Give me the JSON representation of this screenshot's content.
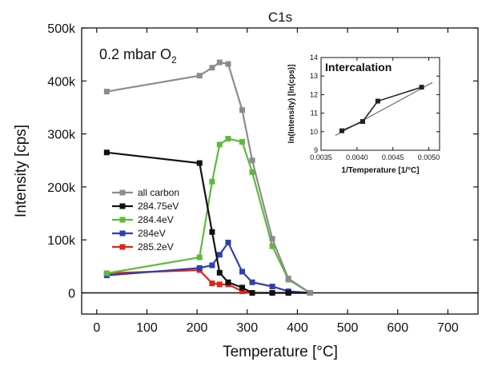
{
  "chart_data": {
    "type": "line",
    "title": "C1s",
    "xlabel": "Temperature [°C]",
    "ylabel": "Intensity [cps]",
    "annotation": "0.2 mbar O",
    "annotation_sub": "2",
    "xlim": [
      -30,
      760
    ],
    "ylim": [
      -40000,
      500000
    ],
    "xticks": [
      0,
      100,
      200,
      300,
      400,
      500,
      600,
      700
    ],
    "xtick_labels": [
      "0",
      "100",
      "200",
      "300",
      "400",
      "500",
      "600",
      "700"
    ],
    "yticks": [
      0,
      100000,
      200000,
      300000,
      400000,
      500000
    ],
    "ytick_labels": [
      "0",
      "100k",
      "200k",
      "300k",
      "400k",
      "500k"
    ],
    "zero_line": true,
    "legend_position": "left",
    "series": [
      {
        "name": "all carbon",
        "color": "#8c8c8c",
        "x": [
          20,
          205,
          230,
          245,
          262,
          290,
          310,
          350,
          382,
          425
        ],
        "y": [
          380000,
          410000,
          425000,
          435000,
          432000,
          345000,
          250000,
          102000,
          27000,
          0
        ]
      },
      {
        "name": "284.75eV",
        "color": "#111111",
        "x": [
          20,
          205,
          230,
          245,
          262,
          290,
          310,
          350,
          382,
          425
        ],
        "y": [
          265000,
          245000,
          115000,
          38000,
          20000,
          10000,
          0,
          0,
          0,
          0
        ]
      },
      {
        "name": "284.4eV",
        "color": "#5dbb3a",
        "x": [
          20,
          205,
          230,
          245,
          262,
          290,
          310,
          350,
          382,
          425
        ],
        "y": [
          37000,
          67000,
          210000,
          280000,
          291000,
          285000,
          228000,
          88000,
          25000,
          0
        ]
      },
      {
        "name": "284eV",
        "color": "#2f3fae",
        "x": [
          20,
          205,
          230,
          245,
          262,
          290,
          310,
          350,
          382,
          425
        ],
        "y": [
          33000,
          47000,
          52000,
          72000,
          95000,
          40000,
          20000,
          12000,
          3000,
          0
        ]
      },
      {
        "name": "285.2eV",
        "color": "#e2231a",
        "x": [
          20,
          205,
          230,
          245,
          262,
          290,
          310,
          350,
          382,
          425
        ],
        "y": [
          37000,
          43000,
          18000,
          16000,
          16000,
          3000,
          0,
          0,
          0,
          0
        ]
      }
    ],
    "inset": {
      "type": "line",
      "title": "Intercalation",
      "xlabel": "1/Temperature [1/°C]",
      "ylabel": "ln(Intensity) [ln(cps)]",
      "xlim": [
        0.0035,
        0.00515
      ],
      "ylim": [
        9,
        14
      ],
      "xticks": [
        0.0035,
        0.004,
        0.0045,
        0.005
      ],
      "xtick_labels": [
        "0.0035",
        "0.0040",
        "0.0045",
        "0.0050"
      ],
      "yticks": [
        9,
        10,
        11,
        12,
        13,
        14
      ],
      "ytick_labels": [
        "9",
        "10",
        "11",
        "12",
        "13",
        "14"
      ],
      "points": {
        "x": [
          0.00379,
          0.00408,
          0.00429,
          0.0049
        ],
        "y": [
          10.05,
          10.55,
          11.65,
          12.4
        ]
      },
      "fit": {
        "x": [
          0.0037,
          0.00505
        ],
        "y": [
          9.8,
          12.65
        ]
      },
      "point_color": "#222222",
      "fit_color": "#777777"
    }
  }
}
